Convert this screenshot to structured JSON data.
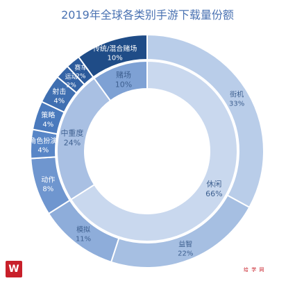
{
  "chart_data": {
    "type": "pie",
    "subtype": "nested-donut",
    "title": "2019年全球各类别手游下载量份额",
    "inner_ring": [
      {
        "label": "休闲",
        "value_label": "66%",
        "value": 66,
        "color": "#c9d8ee"
      },
      {
        "label": "中重度",
        "value_label": "24%",
        "value": 24,
        "color": "#a9c0e3"
      },
      {
        "label": "赌场",
        "value_label": "10%",
        "value": 10,
        "color": "#7ea1d4"
      }
    ],
    "outer_ring": [
      {
        "label": "街机",
        "value_label": "33%",
        "value": 33,
        "color": "#b9cde9"
      },
      {
        "label": "益智",
        "value_label": "22%",
        "value": 22,
        "color": "#a6bfe2"
      },
      {
        "label": "模拟",
        "value_label": "11%",
        "value": 11,
        "color": "#8eadda"
      },
      {
        "label": "动作",
        "value_label": "8%",
        "value": 8,
        "color": "#6f96cf"
      },
      {
        "label": "角色扮演",
        "value_label": "4%",
        "value": 4,
        "color": "#5886c7"
      },
      {
        "label": "策略",
        "value_label": "4%",
        "value": 4,
        "color": "#4a7abd"
      },
      {
        "label": "射击",
        "value_label": "4%",
        "value": 4,
        "color": "#3f6fb1"
      },
      {
        "label": "运动",
        "value_label": "2%",
        "value": 2,
        "color": "#3564a6"
      },
      {
        "label": "赛车",
        "value_label": "2%",
        "value": 2,
        "color": "#2b5a9b"
      },
      {
        "label": "传统/混合赌场",
        "value_label": "10%",
        "value": 10,
        "color": "#1f4c87"
      }
    ]
  },
  "logo_text": "W",
  "watermark": "给 学 网"
}
